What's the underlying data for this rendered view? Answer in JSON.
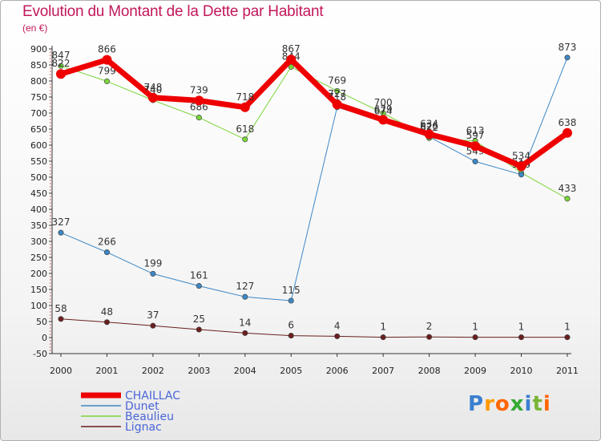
{
  "title": "Evolution du Montant de la Dette par Habitant",
  "subtitle": "(en €)",
  "logo": "Proxiti",
  "chart_data": {
    "type": "line",
    "title": "Evolution du Montant de la Dette par Habitant",
    "subtitle": "(en €)",
    "xlabel": "",
    "ylabel": "",
    "x": [
      "2000",
      "2001",
      "2002",
      "2003",
      "2004",
      "2005",
      "2006",
      "2007",
      "2008",
      "2009",
      "2010",
      "2011"
    ],
    "ylim": [
      -50,
      900
    ],
    "yticks": [
      -50,
      0,
      50,
      100,
      150,
      200,
      250,
      300,
      350,
      400,
      450,
      500,
      550,
      600,
      650,
      700,
      750,
      800,
      850,
      900
    ],
    "grid": false,
    "legend_position": "bottom-left",
    "series": [
      {
        "name": "Lignac",
        "color": "#6b1e1e",
        "width": 1,
        "values": [
          58,
          48,
          37,
          25,
          14,
          6,
          4,
          1,
          2,
          1,
          1,
          1
        ]
      },
      {
        "name": "Beaulieu",
        "color": "#7ad63a",
        "width": 1,
        "values": [
          847,
          799,
          740,
          686,
          618,
          844,
          769,
          700,
          622,
          613,
          514,
          433
        ]
      },
      {
        "name": "Dunet",
        "color": "#3d87c6",
        "width": 1,
        "values": [
          327,
          266,
          199,
          161,
          127,
          115,
          718,
          674,
          626,
          549,
          508,
          873
        ]
      },
      {
        "name": "CHAILLAC",
        "color": "#ee0000",
        "width": 7,
        "values": [
          822,
          866,
          748,
          739,
          718,
          867,
          727,
          679,
          634,
          597,
          534,
          638
        ]
      }
    ],
    "legend": [
      "CHAILLAC",
      "Dunet",
      "Beaulieu",
      "Lignac"
    ]
  }
}
